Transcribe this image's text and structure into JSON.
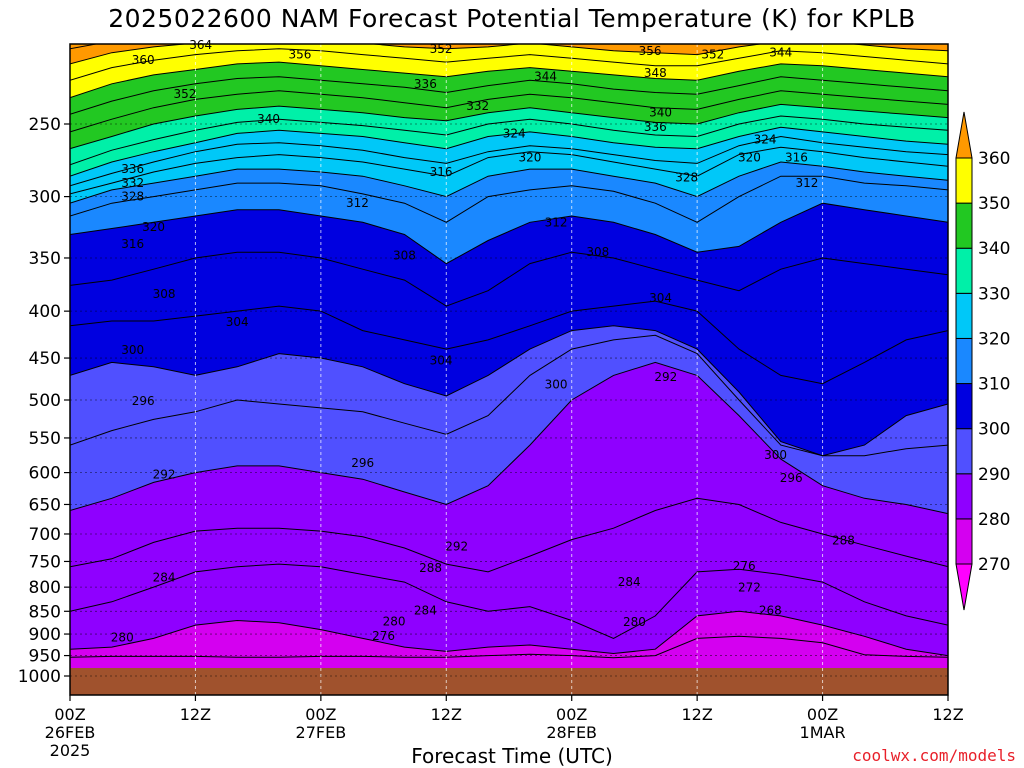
{
  "title": "2025022600 NAM Forecast Potential Temperature (K) for KPLB",
  "xlabel": "Forecast Time (UTC)",
  "credit": "coolwx.com/models",
  "chart_data": {
    "type": "contour",
    "title": "2025022600 NAM Forecast Potential Temperature (K) for KPLB",
    "xlabel": "Forecast Time (UTC)",
    "ylabel": "",
    "y_axis": "pressure (hPa), log, inverted",
    "y_ticks": [
      250,
      300,
      350,
      400,
      450,
      500,
      550,
      600,
      650,
      700,
      750,
      800,
      850,
      900,
      950,
      1000
    ],
    "x_range_hours": [
      0,
      84
    ],
    "x_ticks": [
      {
        "h": 0,
        "l1": "00Z",
        "l2": "26FEB",
        "l3": "2025"
      },
      {
        "h": 12,
        "l1": "12Z",
        "l2": "",
        "l3": ""
      },
      {
        "h": 24,
        "l1": "00Z",
        "l2": "27FEB",
        "l3": ""
      },
      {
        "h": 36,
        "l1": "12Z",
        "l2": "",
        "l3": ""
      },
      {
        "h": 48,
        "l1": "00Z",
        "l2": "28FEB",
        "l3": ""
      },
      {
        "h": 60,
        "l1": "12Z",
        "l2": "",
        "l3": ""
      },
      {
        "h": 72,
        "l1": "00Z",
        "l2": "1MAR",
        "l3": ""
      },
      {
        "h": 84,
        "l1": "12Z",
        "l2": "",
        "l3": ""
      }
    ],
    "colorbar": {
      "levels": [
        270,
        280,
        290,
        300,
        310,
        320,
        330,
        340,
        350,
        360
      ],
      "colors": [
        "#ff00ff",
        "#d400f0",
        "#8f00ff",
        "#5050ff",
        "#0000e0",
        "#1a88ff",
        "#00c8f8",
        "#00f0a8",
        "#22c822",
        "#ffff00",
        "#ff9900"
      ]
    },
    "isentropes": [
      {
        "theta": 276,
        "p": [
          954,
          952,
          952,
          952,
          954,
          954,
          952,
          952,
          954,
          954,
          950,
          947,
          950,
          955,
          950,
          910,
          905,
          910,
          920,
          948,
          952,
          954
        ]
      },
      {
        "theta": 280,
        "p": [
          935,
          930,
          910,
          880,
          870,
          875,
          890,
          910,
          930,
          940,
          930,
          925,
          935,
          945,
          935,
          860,
          850,
          860,
          880,
          905,
          935,
          950
        ]
      },
      {
        "theta": 284,
        "p": [
          850,
          830,
          800,
          770,
          760,
          755,
          760,
          775,
          790,
          830,
          850,
          840,
          870,
          910,
          860,
          770,
          765,
          775,
          790,
          830,
          860,
          880
        ]
      },
      {
        "theta": 288,
        "p": [
          760,
          745,
          715,
          695,
          690,
          690,
          695,
          705,
          725,
          755,
          770,
          740,
          710,
          690,
          660,
          640,
          650,
          680,
          700,
          720,
          740,
          760
        ]
      },
      {
        "theta": 292,
        "p": [
          660,
          640,
          615,
          600,
          590,
          590,
          600,
          610,
          630,
          650,
          620,
          560,
          500,
          470,
          455,
          470,
          520,
          580,
          620,
          640,
          650,
          665
        ]
      },
      {
        "theta": 296,
        "p": [
          560,
          540,
          525,
          515,
          500,
          505,
          510,
          515,
          530,
          545,
          520,
          470,
          440,
          430,
          425,
          445,
          500,
          560,
          575,
          575,
          565,
          560
        ]
      },
      {
        "theta": 300,
        "p": [
          470,
          455,
          460,
          470,
          460,
          445,
          450,
          460,
          480,
          495,
          470,
          440,
          420,
          415,
          420,
          440,
          490,
          555,
          575,
          560,
          520,
          505
        ]
      },
      {
        "theta": 304,
        "p": [
          415,
          410,
          410,
          405,
          400,
          395,
          400,
          420,
          430,
          440,
          430,
          415,
          400,
          395,
          390,
          400,
          440,
          470,
          480,
          455,
          430,
          420
        ]
      },
      {
        "theta": 308,
        "p": [
          375,
          370,
          360,
          350,
          345,
          345,
          350,
          360,
          370,
          395,
          380,
          355,
          345,
          350,
          360,
          370,
          380,
          360,
          350,
          355,
          360,
          365
        ]
      },
      {
        "theta": 312,
        "p": [
          330,
          325,
          320,
          315,
          310,
          310,
          315,
          320,
          330,
          355,
          335,
          320,
          315,
          320,
          330,
          345,
          340,
          320,
          305,
          310,
          315,
          320
        ]
      },
      {
        "theta": 316,
        "p": [
          315,
          305,
          300,
          295,
          290,
          290,
          292,
          298,
          305,
          320,
          300,
          295,
          292,
          296,
          305,
          320,
          300,
          285,
          285,
          290,
          292,
          295
        ]
      },
      {
        "theta": 320,
        "p": [
          305,
          295,
          290,
          285,
          280,
          280,
          282,
          285,
          292,
          300,
          285,
          280,
          280,
          285,
          290,
          300,
          285,
          275,
          278,
          282,
          285,
          288
        ]
      },
      {
        "theta": 324,
        "p": [
          298,
          290,
          282,
          276,
          272,
          270,
          272,
          275,
          280,
          285,
          272,
          268,
          270,
          275,
          280,
          285,
          270,
          265,
          268,
          272,
          275,
          278
        ]
      },
      {
        "theta": 328,
        "p": [
          292,
          283,
          275,
          268,
          263,
          262,
          264,
          267,
          272,
          276,
          268,
          264,
          266,
          270,
          274,
          276,
          264,
          258,
          262,
          265,
          268,
          270
        ]
      },
      {
        "theta": 332,
        "p": [
          285,
          275,
          268,
          262,
          256,
          254,
          256,
          258,
          262,
          266,
          258,
          255,
          258,
          262,
          265,
          266,
          258,
          252,
          255,
          258,
          261,
          263
        ]
      },
      {
        "theta": 336,
        "p": [
          277,
          267,
          260,
          254,
          249,
          247,
          249,
          251,
          254,
          257,
          250,
          247,
          250,
          254,
          257,
          258,
          250,
          245,
          247,
          250,
          252,
          254
        ]
      },
      {
        "theta": 340,
        "p": [
          266,
          258,
          250,
          245,
          241,
          239,
          241,
          243,
          246,
          248,
          243,
          240,
          243,
          246,
          249,
          250,
          243,
          238,
          240,
          242,
          244,
          246
        ]
      },
      {
        "theta": 344,
        "p": [
          255,
          247,
          240,
          235,
          232,
          230,
          232,
          234,
          237,
          240,
          235,
          232,
          234,
          237,
          240,
          241,
          235,
          230,
          232,
          234,
          236,
          238
        ]
      },
      {
        "theta": 348,
        "p": [
          244,
          236,
          230,
          226,
          223,
          222,
          224,
          226,
          228,
          231,
          227,
          224,
          226,
          229,
          231,
          232,
          227,
          222,
          224,
          226,
          228,
          230
        ]
      },
      {
        "theta": 352,
        "p": [
          234,
          226,
          221,
          218,
          215,
          214,
          216,
          218,
          220,
          222,
          219,
          217,
          219,
          221,
          223,
          224,
          219,
          215,
          216,
          218,
          220,
          222
        ]
      },
      {
        "theta": 356,
        "p": [
          224,
          217,
          213,
          210,
          208,
          207,
          208,
          210,
          212,
          214,
          212,
          210,
          212,
          214,
          216,
          216,
          212,
          208,
          209,
          211,
          213,
          215
        ]
      },
      {
        "theta": 360,
        "p": [
          215,
          209,
          206,
          204,
          202,
          201,
          202,
          204,
          206,
          207,
          206,
          204,
          206,
          208,
          209,
          210,
          206,
          203,
          203,
          205,
          207,
          208
        ]
      },
      {
        "theta": 364,
        "p": [
          207,
          203,
          201,
          199,
          198,
          197,
          198,
          199,
          200,
          201,
          200,
          199,
          200,
          202,
          203,
          203,
          200,
          198,
          198,
          199,
          201,
          202
        ]
      }
    ],
    "contour_labels": [
      {
        "text": "364",
        "h": 12.5,
        "p": 205
      },
      {
        "text": "360",
        "h": 7,
        "p": 213
      },
      {
        "text": "356",
        "h": 22,
        "p": 210
      },
      {
        "text": "352",
        "h": 35.5,
        "p": 207
      },
      {
        "text": "356",
        "h": 55.5,
        "p": 208
      },
      {
        "text": "352",
        "h": 61.5,
        "p": 210
      },
      {
        "text": "344",
        "h": 68,
        "p": 209
      },
      {
        "text": "352",
        "h": 11,
        "p": 232
      },
      {
        "text": "336",
        "h": 34,
        "p": 226
      },
      {
        "text": "344",
        "h": 45.5,
        "p": 222
      },
      {
        "text": "348",
        "h": 56,
        "p": 220
      },
      {
        "text": "340",
        "h": 19,
        "p": 247
      },
      {
        "text": "332",
        "h": 39,
        "p": 239
      },
      {
        "text": "340",
        "h": 56.5,
        "p": 243
      },
      {
        "text": "336",
        "h": 56,
        "p": 252
      },
      {
        "text": "324",
        "h": 42.5,
        "p": 256
      },
      {
        "text": "324",
        "h": 66.5,
        "p": 260
      },
      {
        "text": "320",
        "h": 44,
        "p": 272
      },
      {
        "text": "320",
        "h": 65,
        "p": 272
      },
      {
        "text": "316",
        "h": 69.5,
        "p": 272
      },
      {
        "text": "336",
        "h": 6,
        "p": 280
      },
      {
        "text": "332",
        "h": 6,
        "p": 290
      },
      {
        "text": "316",
        "h": 35.5,
        "p": 282
      },
      {
        "text": "328",
        "h": 59,
        "p": 286
      },
      {
        "text": "312",
        "h": 70.5,
        "p": 290
      },
      {
        "text": "328",
        "h": 6,
        "p": 300
      },
      {
        "text": "312",
        "h": 27.5,
        "p": 305
      },
      {
        "text": "312",
        "h": 46.5,
        "p": 320
      },
      {
        "text": "320",
        "h": 8,
        "p": 324
      },
      {
        "text": "316",
        "h": 6,
        "p": 338
      },
      {
        "text": "308",
        "h": 32,
        "p": 348
      },
      {
        "text": "308",
        "h": 50.5,
        "p": 345
      },
      {
        "text": "308",
        "h": 9,
        "p": 383
      },
      {
        "text": "304",
        "h": 56.5,
        "p": 387
      },
      {
        "text": "304",
        "h": 16,
        "p": 411
      },
      {
        "text": "300",
        "h": 6,
        "p": 441
      },
      {
        "text": "304",
        "h": 35.5,
        "p": 453
      },
      {
        "text": "292",
        "h": 57,
        "p": 472
      },
      {
        "text": "300",
        "h": 46.5,
        "p": 481
      },
      {
        "text": "296",
        "h": 7,
        "p": 501
      },
      {
        "text": "300",
        "h": 67.5,
        "p": 574
      },
      {
        "text": "296",
        "h": 69,
        "p": 608
      },
      {
        "text": "292",
        "h": 9,
        "p": 603
      },
      {
        "text": "296",
        "h": 28,
        "p": 586
      },
      {
        "text": "292",
        "h": 37,
        "p": 722
      },
      {
        "text": "288",
        "h": 74,
        "p": 712
      },
      {
        "text": "288",
        "h": 34.5,
        "p": 762
      },
      {
        "text": "284",
        "h": 9,
        "p": 781
      },
      {
        "text": "284",
        "h": 53.5,
        "p": 790
      },
      {
        "text": "276",
        "h": 64.5,
        "p": 759
      },
      {
        "text": "272",
        "h": 65,
        "p": 801
      },
      {
        "text": "284",
        "h": 34,
        "p": 848
      },
      {
        "text": "268",
        "h": 67,
        "p": 848
      },
      {
        "text": "280",
        "h": 31,
        "p": 872
      },
      {
        "text": "280",
        "h": 54,
        "p": 873
      },
      {
        "text": "276",
        "h": 30,
        "p": 904
      },
      {
        "text": "280",
        "h": 5,
        "p": 908
      }
    ]
  }
}
